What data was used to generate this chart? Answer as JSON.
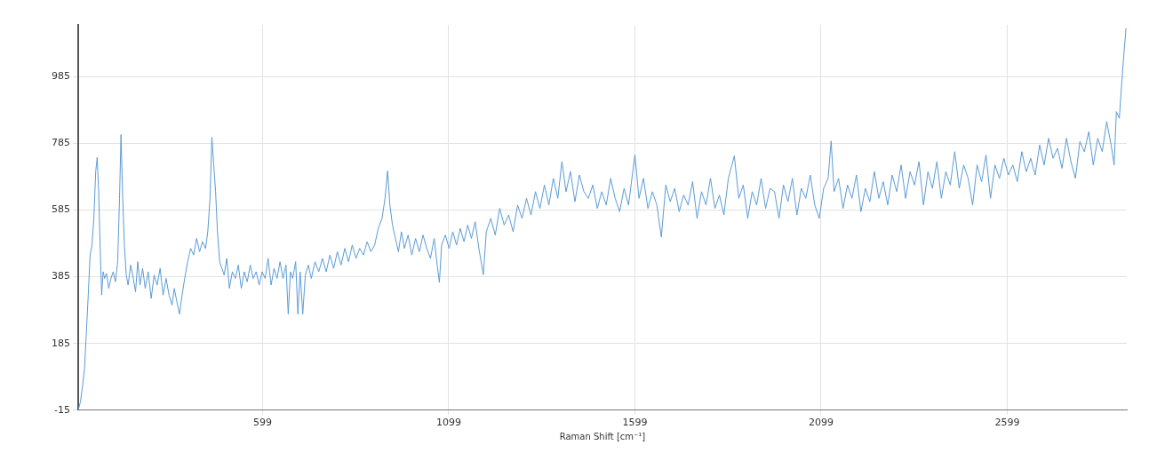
{
  "chart_data": {
    "type": "line",
    "xlabel": "Raman Shift [cm⁻¹]",
    "xlim": [
      104,
      2920
    ],
    "xticks": [
      599,
      1099,
      1599,
      2099,
      2599
    ],
    "ylim": [
      -15,
      1140
    ],
    "yticks": [
      -15,
      185,
      385,
      585,
      785,
      985
    ],
    "grid": true,
    "legend": false,
    "marker": "none",
    "line_style": "solid",
    "series": [
      {
        "color": "#5b9bd5",
        "x": [
          104,
          110,
          116,
          121,
          126,
          131,
          136,
          141,
          146,
          151,
          155,
          159,
          163,
          167,
          171,
          175,
          180,
          186,
          192,
          198,
          204,
          210,
          215,
          219,
          223,
          228,
          233,
          238,
          245,
          252,
          258,
          264,
          270,
          277,
          284,
          292,
          300,
          308,
          316,
          324,
          332,
          340,
          348,
          356,
          362,
          369,
          376,
          383,
          390,
          398,
          406,
          414,
          422,
          430,
          438,
          446,
          452,
          458,
          463,
          468,
          473,
          478,
          484,
          490,
          496,
          503,
          510,
          518,
          526,
          534,
          542,
          550,
          558,
          566,
          574,
          582,
          590,
          598,
          606,
          614,
          622,
          630,
          638,
          646,
          654,
          662,
          668,
          674,
          680,
          688,
          694,
          700,
          707,
          714,
          722,
          730,
          740,
          750,
          760,
          770,
          780,
          790,
          800,
          810,
          820,
          830,
          840,
          850,
          860,
          870,
          880,
          890,
          900,
          910,
          920,
          928,
          935,
          941,
          948,
          956,
          964,
          972,
          980,
          990,
          1000,
          1010,
          1020,
          1030,
          1040,
          1050,
          1060,
          1068,
          1074,
          1080,
          1090,
          1100,
          1110,
          1120,
          1130,
          1140,
          1150,
          1160,
          1170,
          1180,
          1192,
          1200,
          1212,
          1224,
          1236,
          1248,
          1260,
          1272,
          1284,
          1296,
          1308,
          1320,
          1332,
          1344,
          1356,
          1368,
          1380,
          1392,
          1403,
          1414,
          1426,
          1438,
          1450,
          1462,
          1474,
          1486,
          1498,
          1510,
          1522,
          1534,
          1546,
          1558,
          1570,
          1582,
          1599,
          1610,
          1622,
          1634,
          1646,
          1658,
          1670,
          1682,
          1694,
          1706,
          1718,
          1730,
          1742,
          1754,
          1766,
          1778,
          1790,
          1802,
          1814,
          1826,
          1838,
          1850,
          1866,
          1878,
          1890,
          1902,
          1914,
          1926,
          1938,
          1950,
          1962,
          1974,
          1986,
          1998,
          2010,
          2022,
          2034,
          2046,
          2058,
          2070,
          2082,
          2094,
          2106,
          2118,
          2126,
          2134,
          2146,
          2158,
          2170,
          2182,
          2194,
          2206,
          2218,
          2230,
          2242,
          2254,
          2266,
          2278,
          2290,
          2302,
          2314,
          2326,
          2338,
          2350,
          2362,
          2374,
          2386,
          2398,
          2410,
          2422,
          2434,
          2446,
          2458,
          2470,
          2482,
          2494,
          2506,
          2518,
          2530,
          2542,
          2554,
          2566,
          2578,
          2590,
          2602,
          2614,
          2626,
          2638,
          2650,
          2662,
          2674,
          2686,
          2698,
          2710,
          2722,
          2734,
          2746,
          2758,
          2770,
          2782,
          2794,
          2806,
          2818,
          2830,
          2842,
          2854,
          2866,
          2878,
          2886,
          2892,
          2900,
          2906,
          2912,
          2918
        ],
        "values": [
          -15,
          10,
          60,
          110,
          220,
          330,
          450,
          480,
          560,
          700,
          743,
          640,
          470,
          330,
          400,
          380,
          395,
          350,
          380,
          400,
          370,
          430,
          620,
          811,
          640,
          480,
          390,
          360,
          420,
          380,
          340,
          430,
          360,
          410,
          350,
          400,
          320,
          390,
          360,
          410,
          330,
          380,
          330,
          300,
          350,
          310,
          273,
          330,
          380,
          430,
          470,
          450,
          500,
          460,
          490,
          470,
          520,
          620,
          803,
          720,
          640,
          520,
          430,
          410,
          390,
          440,
          350,
          400,
          380,
          420,
          350,
          400,
          370,
          420,
          380,
          400,
          360,
          400,
          380,
          440,
          360,
          410,
          380,
          430,
          380,
          420,
          273,
          400,
          380,
          430,
          273,
          400,
          273,
          390,
          420,
          380,
          430,
          400,
          440,
          400,
          450,
          410,
          460,
          420,
          470,
          430,
          480,
          440,
          470,
          450,
          490,
          460,
          480,
          530,
          560,
          620,
          702,
          600,
          540,
          500,
          460,
          520,
          470,
          510,
          450,
          500,
          460,
          510,
          470,
          440,
          500,
          420,
          368,
          480,
          510,
          470,
          520,
          480,
          530,
          490,
          540,
          500,
          550,
          470,
          391,
          520,
          560,
          510,
          590,
          540,
          570,
          520,
          600,
          560,
          620,
          570,
          640,
          590,
          660,
          600,
          680,
          620,
          730,
          640,
          700,
          610,
          690,
          640,
          620,
          660,
          590,
          640,
          600,
          680,
          620,
          580,
          650,
          600,
          751,
          620,
          680,
          590,
          640,
          600,
          504,
          660,
          610,
          650,
          580,
          630,
          600,
          670,
          560,
          640,
          600,
          680,
          590,
          630,
          570,
          680,
          747,
          620,
          660,
          560,
          640,
          600,
          680,
          590,
          650,
          640,
          560,
          660,
          610,
          680,
          570,
          650,
          620,
          690,
          600,
          560,
          650,
          680,
          792,
          640,
          680,
          590,
          660,
          620,
          690,
          580,
          650,
          610,
          700,
          620,
          670,
          600,
          690,
          640,
          720,
          620,
          700,
          660,
          730,
          600,
          700,
          650,
          730,
          620,
          700,
          660,
          760,
          650,
          720,
          680,
          600,
          720,
          670,
          750,
          620,
          720,
          680,
          740,
          690,
          720,
          670,
          760,
          700,
          740,
          690,
          780,
          720,
          800,
          740,
          770,
          710,
          800,
          730,
          680,
          790,
          760,
          820,
          720,
          800,
          760,
          850,
          780,
          720,
          880,
          860,
          960,
          1050,
          1130
        ]
      }
    ]
  }
}
